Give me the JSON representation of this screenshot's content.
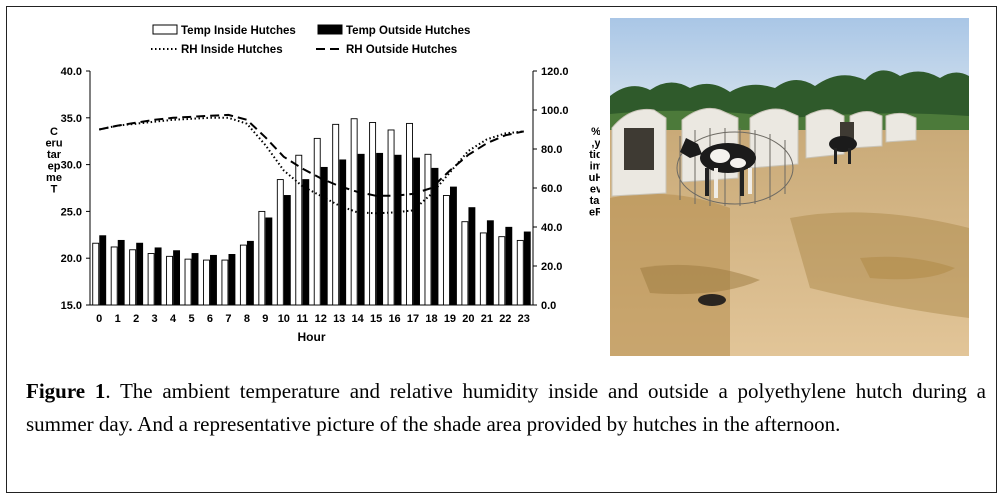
{
  "chart_data": {
    "type": "bar",
    "xlabel": "Hour",
    "ylabel_left": "C\neru\ntar\nep\nme\nT",
    "ylabel_right": "%\n,y\ntid\nim\nuH\n evi\ntal\neR",
    "ylim_left": [
      15.0,
      40.0
    ],
    "yticks_left": [
      "15.0",
      "20.0",
      "25.0",
      "30.0",
      "35.0",
      "40.0"
    ],
    "ylim_right": [
      0.0,
      120.0
    ],
    "yticks_right": [
      "0.0",
      "20.0",
      "40.0",
      "60.0",
      "80.0",
      "100.0",
      "120.0"
    ],
    "categories": [
      "0",
      "1",
      "2",
      "3",
      "4",
      "5",
      "6",
      "7",
      "8",
      "9",
      "10",
      "11",
      "12",
      "13",
      "14",
      "15",
      "16",
      "17",
      "18",
      "19",
      "20",
      "21",
      "22",
      "23"
    ],
    "legend_position": "top",
    "series": [
      {
        "name": "Temp Inside Hutches",
        "kind": "bar",
        "axis": "left",
        "fill": "#ffffff",
        "values": [
          21.6,
          21.2,
          20.9,
          20.5,
          20.2,
          19.9,
          19.8,
          19.8,
          21.4,
          25.0,
          28.4,
          31.0,
          32.8,
          34.3,
          34.9,
          34.5,
          33.7,
          34.4,
          31.1,
          26.7,
          23.9,
          22.7,
          22.3,
          21.9
        ]
      },
      {
        "name": "Temp Outside Hutches",
        "kind": "bar",
        "axis": "left",
        "fill": "#000000",
        "values": [
          22.4,
          21.9,
          21.6,
          21.1,
          20.8,
          20.5,
          20.3,
          20.4,
          21.8,
          24.3,
          26.7,
          28.4,
          29.7,
          30.5,
          31.1,
          31.2,
          31.0,
          30.7,
          29.6,
          27.6,
          25.4,
          24.0,
          23.3,
          22.8
        ]
      },
      {
        "name": "RH Inside Hutches",
        "kind": "line",
        "style": "dotted",
        "axis": "right",
        "values": [
          90,
          92,
          93,
          94,
          95,
          95.5,
          96,
          96,
          93,
          82,
          69,
          61,
          56,
          51,
          47.5,
          47,
          47.5,
          48.5,
          57,
          68,
          79,
          85,
          88,
          89
        ]
      },
      {
        "name": "RH Outside Hutches",
        "kind": "line",
        "style": "dashed",
        "axis": "right",
        "values": [
          90,
          92,
          93.5,
          95,
          96,
          96.5,
          97,
          97.5,
          95,
          86,
          76,
          70,
          65,
          61,
          58,
          56,
          56,
          57,
          60,
          69,
          77,
          83,
          87,
          89
        ]
      }
    ]
  },
  "caption": {
    "label": "Figure 1",
    "text": ". The ambient temperature and relative humidity inside and outside a polyethylene hutch during a summer day. And a representative picture of the shade area provided by hutches in the afternoon."
  },
  "photo": {
    "icon": "calf-hutches-photo",
    "colors": {
      "sky": "#b9d2ea",
      "trees": "#2f5a2b",
      "sand": "#d8b987",
      "grass": "#b58d4a",
      "hutch": "#e9e6df"
    }
  }
}
